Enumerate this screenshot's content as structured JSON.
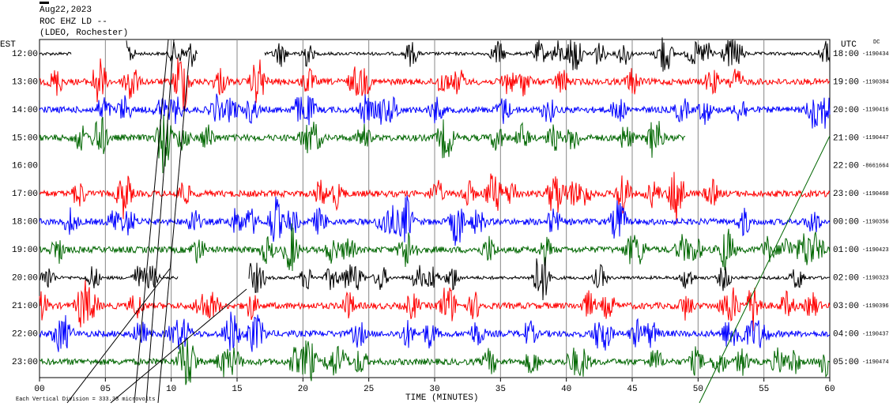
{
  "header": {
    "date": "Aug22,2023",
    "station": "ROC EHZ LD --",
    "network": "(LDEO, Rochester)"
  },
  "left_axis": {
    "title": "EST",
    "labels": [
      "12:00",
      "13:00",
      "14:00",
      "15:00",
      "16:00",
      "17:00",
      "18:00",
      "19:00",
      "20:00",
      "21:00",
      "22:00",
      "23:00"
    ]
  },
  "right_axis": {
    "title": "UTC",
    "note": "DC",
    "labels": [
      "18:00",
      "19:00",
      "20:00",
      "21:00",
      "22:00",
      "23:00",
      "00:00",
      "01:00",
      "02:00",
      "03:00",
      "04:00",
      "05:00"
    ],
    "offsets": [
      "-1190434",
      "-1190384",
      "-1190416",
      "-1190447",
      "-8661664",
      "-1190460",
      "-1190356",
      "-1190423",
      "-1190323",
      "-1190396",
      "-1190437",
      "-1190474"
    ]
  },
  "x_axis": {
    "ticks": [
      "00",
      "05",
      "10",
      "15",
      "20",
      "25",
      "30",
      "35",
      "40",
      "45",
      "50",
      "55",
      "60"
    ],
    "title": "TIME (MINUTES)"
  },
  "footer": "Each Vertical Division = 333.33 microvolts"
}
